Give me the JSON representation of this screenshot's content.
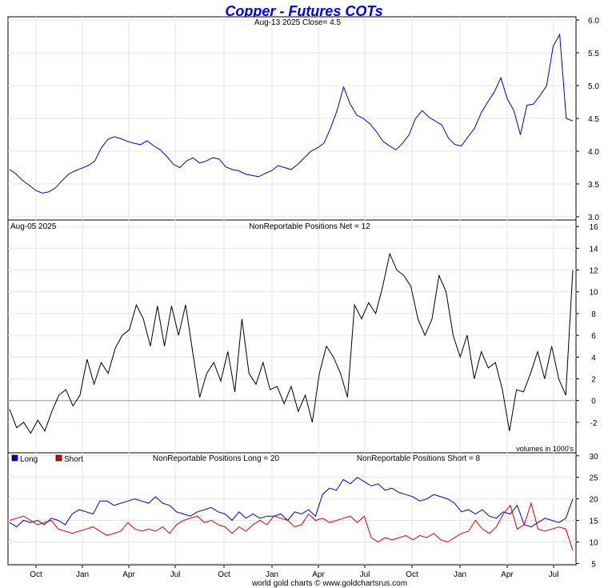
{
  "header": {
    "title": "Copper - Futures COTs",
    "title_color": "#0000ee",
    "footer": "world gold charts © www.goldchartsrus.com"
  },
  "chart_data": [
    {
      "type": "line",
      "panel": "price",
      "subtitle": "Aug-13  2025   Close= 4.5",
      "ylim": [
        2.95,
        6.05
      ],
      "yticks": [
        "3.0",
        "3.5",
        "4.0",
        "4.5",
        "5.0",
        "5.5",
        "6.0"
      ],
      "grid": true,
      "series": [
        {
          "color": "#0000cc",
          "values": [
            3.72,
            3.65,
            3.55,
            3.48,
            3.4,
            3.36,
            3.38,
            3.44,
            3.55,
            3.65,
            3.7,
            3.74,
            3.78,
            3.85,
            4.05,
            4.18,
            4.22,
            4.19,
            4.15,
            4.12,
            4.1,
            4.16,
            4.08,
            4.02,
            3.92,
            3.8,
            3.75,
            3.85,
            3.9,
            3.82,
            3.85,
            3.9,
            3.88,
            3.76,
            3.72,
            3.7,
            3.65,
            3.63,
            3.61,
            3.66,
            3.7,
            3.78,
            3.75,
            3.72,
            3.8,
            3.9,
            4.0,
            4.05,
            4.12,
            4.35,
            4.62,
            4.98,
            4.72,
            4.55,
            4.5,
            4.42,
            4.3,
            4.15,
            4.08,
            4.02,
            4.12,
            4.25,
            4.5,
            4.62,
            4.52,
            4.46,
            4.4,
            4.2,
            4.1,
            4.08,
            4.22,
            4.35,
            4.58,
            4.75,
            4.9,
            5.12,
            4.8,
            4.62,
            4.25,
            4.7,
            4.72,
            4.85,
            5.0,
            5.6,
            5.78,
            4.5,
            4.46
          ],
          "x": [
            0,
            1,
            2,
            3,
            4,
            5,
            6,
            7,
            8,
            9,
            10,
            11,
            12,
            13,
            14,
            15,
            16,
            17,
            18,
            19,
            20,
            21,
            22,
            23,
            24,
            25,
            26,
            27,
            28,
            29,
            30,
            31,
            32,
            33,
            34,
            35,
            36,
            37,
            38,
            39,
            40,
            41,
            42,
            43,
            44,
            45,
            46,
            47,
            48,
            49,
            50,
            51,
            52,
            53,
            54,
            55,
            56,
            57,
            58,
            59,
            60,
            61,
            62,
            63,
            64,
            65,
            66,
            67,
            68,
            69,
            70,
            71,
            72,
            73,
            74,
            75,
            76,
            77,
            78,
            79,
            80,
            81,
            82,
            83,
            84,
            85,
            86
          ]
        }
      ]
    },
    {
      "type": "line",
      "panel": "net",
      "subtitle": "NonReportable Positions Net = 12",
      "corner_label": "Aug-05  2025",
      "note": "volumes in 1000's",
      "ylim": [
        -4.8,
        16.6
      ],
      "yticks": [
        "-2",
        "0",
        "2",
        "4",
        "6",
        "8",
        "10",
        "12",
        "14",
        "16"
      ],
      "zero_line": true,
      "grid": true,
      "series": [
        {
          "color": "#000000",
          "values": [
            -0.8,
            -2.5,
            -2.0,
            -3.0,
            -1.8,
            -2.8,
            -1.0,
            0.5,
            1.0,
            -0.5,
            0.5,
            3.8,
            1.5,
            3.5,
            2.5,
            4.8,
            6.0,
            6.5,
            8.8,
            7.5,
            5.0,
            8.7,
            5.0,
            8.7,
            6.0,
            8.8,
            4.5,
            0.3,
            2.5,
            3.5,
            1.8,
            4.5,
            0.8,
            7.5,
            2.5,
            1.5,
            3.5,
            1.0,
            1.3,
            -0.3,
            1.3,
            -1.0,
            0.5,
            -2.0,
            2.5,
            5.0,
            4.0,
            2.5,
            0.3,
            8.8,
            7.5,
            9.0,
            8.0,
            10.5,
            13.5,
            12.0,
            11.5,
            10.5,
            7.5,
            6.0,
            7.5,
            11.5,
            10.0,
            6.0,
            4.0,
            6.0,
            2.0,
            4.5,
            3.0,
            3.5,
            1.0,
            -2.8,
            1.0,
            0.8,
            2.5,
            4.5,
            2.0,
            5.0,
            2.0,
            0.5,
            12.0
          ],
          "x": [
            0,
            1,
            2,
            3,
            4,
            5,
            6,
            7,
            8,
            9,
            10,
            11,
            12,
            13,
            14,
            15,
            16,
            17,
            18,
            19,
            20,
            21,
            22,
            23,
            24,
            25,
            26,
            27,
            28,
            29,
            30,
            31,
            32,
            33,
            34,
            35,
            36,
            37,
            38,
            39,
            40,
            41,
            42,
            43,
            44,
            45,
            46,
            47,
            48,
            49,
            50,
            51,
            52,
            53,
            54,
            55,
            56,
            57,
            58,
            59,
            60,
            61,
            62,
            63,
            64,
            65,
            66,
            67,
            68,
            69,
            70,
            71,
            72,
            73,
            74,
            75,
            76,
            77,
            78,
            79,
            80
          ]
        }
      ]
    },
    {
      "type": "line",
      "panel": "long_short",
      "subtitle_long": "NonReportable Positions Long = 20",
      "subtitle_short": "NonReportable Positions Short = 8",
      "ylim": [
        4.7,
        30.7
      ],
      "yticks": [
        "5",
        "10",
        "15",
        "20",
        "25",
        "30"
      ],
      "xticks": [
        "Oct",
        "Jan",
        "Apr",
        "Jul",
        "Oct",
        "Jan",
        "Apr",
        "Jul",
        "Oct",
        "Jan",
        "Apr",
        "Jul"
      ],
      "grid": true,
      "legend_position": "top-left",
      "series": [
        {
          "name": "Long",
          "color": "#0000cc",
          "values": [
            14.5,
            13.5,
            15.0,
            14.5,
            15.0,
            14.0,
            15.5,
            15.0,
            14.0,
            16.5,
            17.5,
            17.0,
            16.5,
            19.5,
            19.5,
            18.5,
            19.0,
            19.5,
            20.0,
            19.5,
            19.0,
            20.5,
            19.0,
            18.5,
            17.0,
            16.5,
            16.0,
            17.0,
            17.5,
            18.0,
            17.0,
            16.5,
            15.0,
            17.0,
            15.5,
            16.5,
            15.5,
            16.0,
            16.0,
            16.5,
            15.0,
            17.0,
            16.5,
            17.5,
            16.0,
            21.0,
            22.5,
            22.0,
            24.5,
            23.5,
            25.0,
            24.0,
            23.0,
            23.5,
            22.0,
            22.5,
            21.5,
            21.0,
            20.5,
            19.5,
            20.0,
            21.0,
            20.5,
            20.0,
            19.0,
            17.0,
            17.5,
            16.5,
            17.5,
            16.0,
            15.5,
            17.0,
            16.5,
            18.5,
            14.0,
            13.5,
            14.5,
            15.5,
            15.0,
            14.5,
            15.5,
            20.0
          ],
          "x": [
            0,
            1,
            2,
            3,
            4,
            5,
            6,
            7,
            8,
            9,
            10,
            11,
            12,
            13,
            14,
            15,
            16,
            17,
            18,
            19,
            20,
            21,
            22,
            23,
            24,
            25,
            26,
            27,
            28,
            29,
            30,
            31,
            32,
            33,
            34,
            35,
            36,
            37,
            38,
            39,
            40,
            41,
            42,
            43,
            44,
            45,
            46,
            47,
            48,
            49,
            50,
            51,
            52,
            53,
            54,
            55,
            56,
            57,
            58,
            59,
            60,
            61,
            62,
            63,
            64,
            65,
            66,
            67,
            68,
            69,
            70,
            71,
            72,
            73,
            74,
            75,
            76,
            77,
            78,
            79,
            80,
            81
          ]
        },
        {
          "name": "Short",
          "color": "#dd0000",
          "values": [
            15.0,
            15.5,
            16.0,
            15.0,
            14.0,
            14.5,
            15.0,
            13.0,
            12.5,
            12.0,
            12.5,
            13.0,
            13.5,
            12.5,
            11.5,
            12.0,
            12.5,
            14.5,
            13.0,
            12.5,
            13.0,
            12.5,
            13.5,
            12.0,
            14.0,
            15.0,
            15.5,
            16.0,
            14.5,
            15.0,
            14.0,
            13.5,
            12.0,
            13.5,
            12.5,
            14.0,
            15.0,
            14.0,
            16.0,
            15.5,
            15.0,
            13.5,
            14.0,
            16.5,
            15.0,
            15.5,
            14.5,
            15.0,
            15.5,
            16.0,
            14.5,
            16.0,
            11.0,
            10.0,
            11.0,
            10.5,
            11.0,
            11.5,
            10.5,
            11.5,
            11.0,
            12.0,
            10.5,
            10.0,
            11.0,
            12.0,
            12.5,
            15.0,
            13.0,
            12.0,
            13.5,
            16.5,
            18.5,
            13.0,
            14.0,
            19.0,
            13.0,
            12.5,
            13.0,
            13.5,
            13.0,
            8.0
          ],
          "x": [
            0,
            1,
            2,
            3,
            4,
            5,
            6,
            7,
            8,
            9,
            10,
            11,
            12,
            13,
            14,
            15,
            16,
            17,
            18,
            19,
            20,
            21,
            22,
            23,
            24,
            25,
            26,
            27,
            28,
            29,
            30,
            31,
            32,
            33,
            34,
            35,
            36,
            37,
            38,
            39,
            40,
            41,
            42,
            43,
            44,
            45,
            46,
            47,
            48,
            49,
            50,
            51,
            52,
            53,
            54,
            55,
            56,
            57,
            58,
            59,
            60,
            61,
            62,
            63,
            64,
            65,
            66,
            67,
            68,
            69,
            70,
            71,
            72,
            73,
            74,
            75,
            76,
            77,
            78,
            79,
            80,
            81
          ]
        }
      ]
    }
  ]
}
